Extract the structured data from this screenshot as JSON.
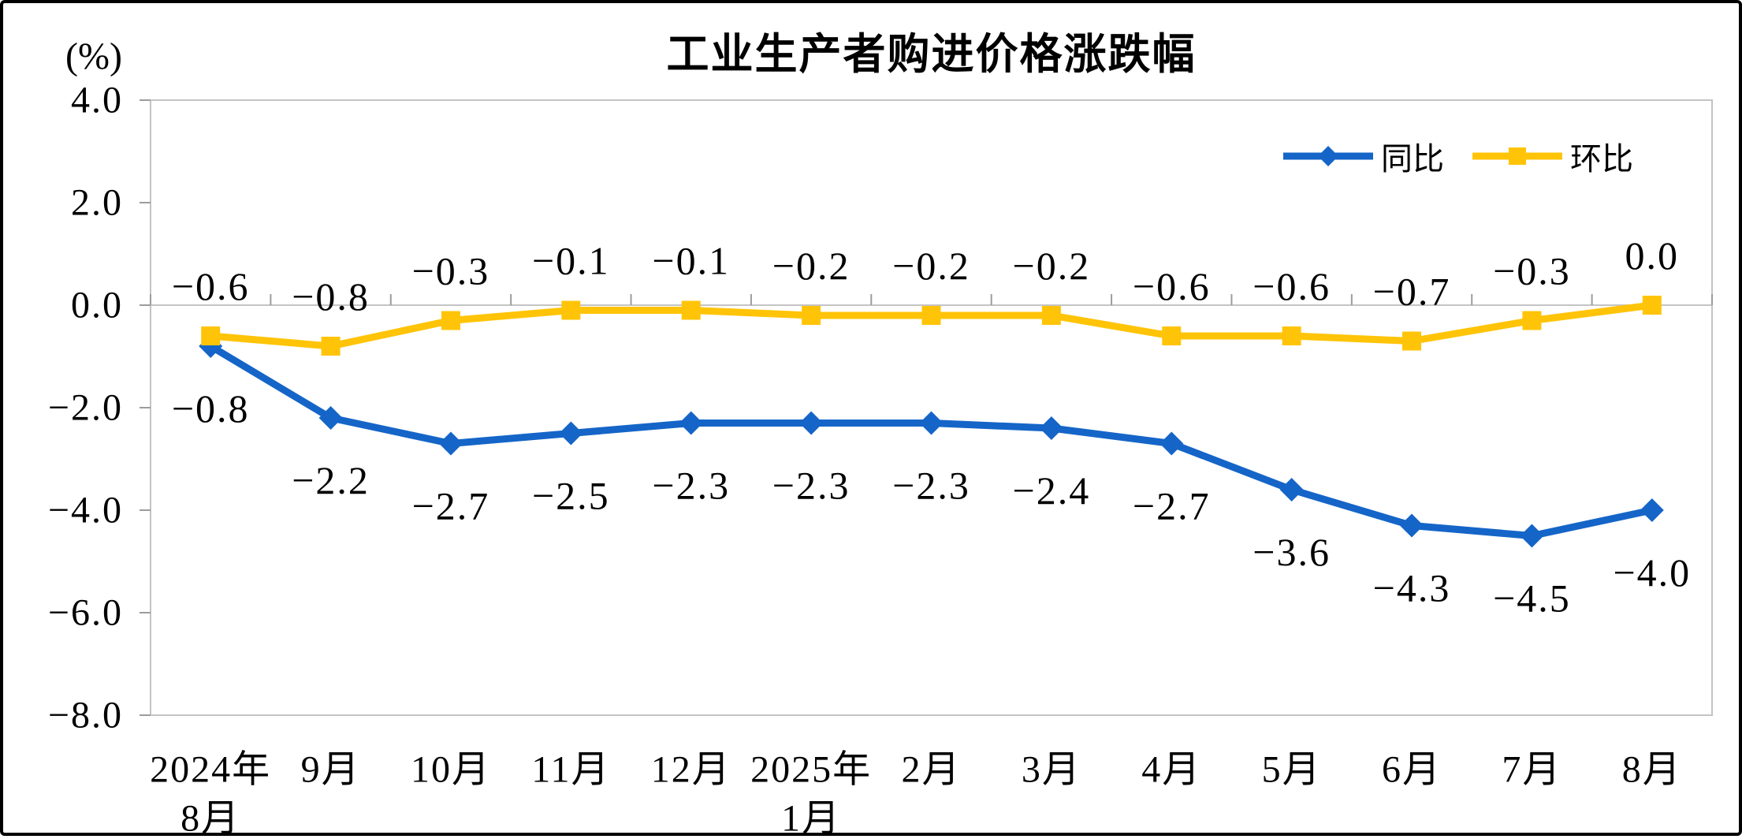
{
  "chart_data": {
    "type": "line",
    "title": "工业生产者购进价格涨跌幅",
    "unit_label": "(%)",
    "categories": [
      "2024年\n8月",
      "9月",
      "10月",
      "11月",
      "12月",
      "2025年\n1月",
      "2月",
      "3月",
      "4月",
      "5月",
      "6月",
      "7月",
      "8月"
    ],
    "series": [
      {
        "name": "同比",
        "color": "#1565C8",
        "marker": "diamond",
        "values": [
          -0.8,
          -2.2,
          -2.7,
          -2.5,
          -2.3,
          -2.3,
          -2.3,
          -2.4,
          -2.7,
          -3.6,
          -4.3,
          -4.5,
          -4.0
        ]
      },
      {
        "name": "环比",
        "color": "#FFC408",
        "marker": "square",
        "values": [
          -0.6,
          -0.8,
          -0.3,
          -0.1,
          -0.1,
          -0.2,
          -0.2,
          -0.2,
          -0.6,
          -0.6,
          -0.7,
          -0.3,
          0.0
        ]
      }
    ],
    "ylim": [
      -8.0,
      4.0
    ],
    "ytick_labels": [
      "4.0",
      "2.0",
      "0.0",
      "-2.0",
      "-4.0",
      "-6.0",
      "-8.0"
    ],
    "grid": "zero-line-only",
    "legend_position": "top-right",
    "colors": {
      "axis": "#C4C4C4",
      "tick": "#9C9C9C",
      "label": "#000000"
    }
  }
}
